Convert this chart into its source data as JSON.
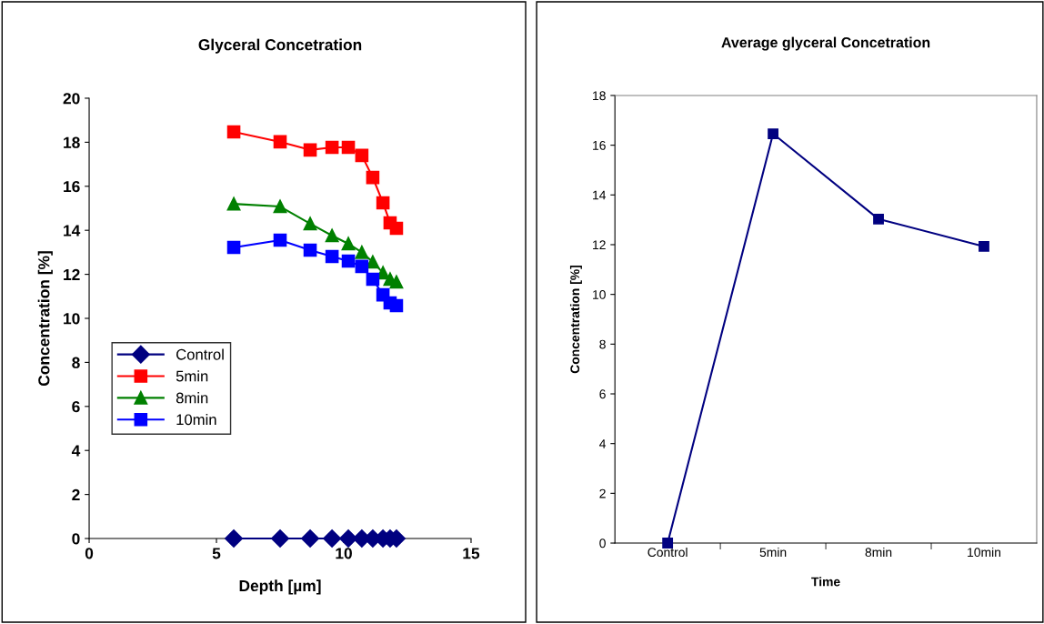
{
  "chart_data": [
    {
      "type": "line",
      "title": "Glyceral Concetration",
      "xlabel": "Depth [µm]",
      "ylabel": "Concentration [%]",
      "x": [
        5.68,
        7.5,
        8.68,
        9.54,
        10.18,
        10.71,
        11.14,
        11.54,
        11.82,
        12.07
      ],
      "series": [
        {
          "name": "Control",
          "color": "#000080",
          "marker": "diamond",
          "values": [
            0,
            0,
            0,
            0,
            0,
            0,
            0,
            0,
            0,
            0
          ]
        },
        {
          "name": "5min",
          "color": "#ff0000",
          "marker": "square",
          "values": [
            18.47,
            18.02,
            17.65,
            17.77,
            17.77,
            17.4,
            16.4,
            15.25,
            14.34,
            14.09
          ]
        },
        {
          "name": "8min",
          "color": "#008000",
          "marker": "triangle",
          "values": [
            15.2,
            15.08,
            14.3,
            13.76,
            13.39,
            13.0,
            12.56,
            12.07,
            11.78,
            11.65
          ]
        },
        {
          "name": "10min",
          "color": "#0000ff",
          "marker": "square",
          "values": [
            13.22,
            13.55,
            13.1,
            12.81,
            12.6,
            12.36,
            11.78,
            11.07,
            10.7,
            10.58
          ]
        }
      ],
      "xlim": [
        0,
        15
      ],
      "xticks": [
        0,
        5,
        10,
        15
      ],
      "ylim": [
        0,
        20
      ],
      "yticks": [
        0,
        2,
        4,
        6,
        8,
        10,
        12,
        14,
        16,
        18,
        20
      ],
      "grid": false,
      "legend": "bottom left",
      "line_style": "solid"
    },
    {
      "type": "line",
      "title": "Average glyceral Concetration",
      "xlabel": "Time",
      "ylabel": "Concentration [%]",
      "categories": [
        "Control",
        "5min",
        "8min",
        "10min"
      ],
      "series": [
        {
          "color": "#000080",
          "marker": "square",
          "values": [
            0,
            16.46,
            13.03,
            11.93
          ]
        }
      ],
      "ylim": [
        0,
        18
      ],
      "yticks": [
        0,
        2,
        4,
        6,
        8,
        10,
        12,
        14,
        16,
        18
      ],
      "grid": false,
      "legend": false,
      "line_style": "solid"
    }
  ]
}
